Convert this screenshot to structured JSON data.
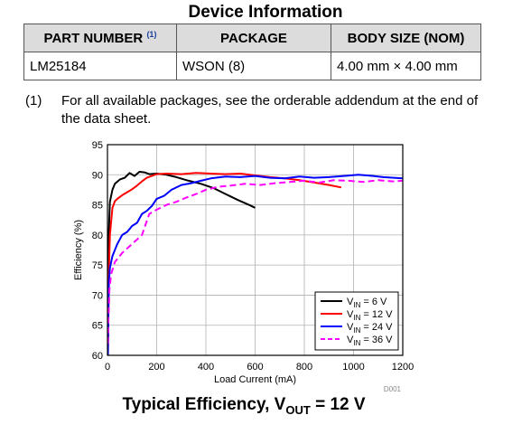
{
  "table": {
    "title": "Device Information",
    "headers": [
      "PART NUMBER",
      "PACKAGE",
      "BODY SIZE (NOM)"
    ],
    "header_note": "(1)",
    "rows": [
      [
        "LM25184",
        "WSON (8)",
        "4.00 mm × 4.00 mm"
      ]
    ]
  },
  "footnote": {
    "number": "(1)",
    "text": "For all available packages, see the orderable addendum at the end of the data sheet."
  },
  "chart_data": {
    "type": "line",
    "xlabel": "Load Current (mA)",
    "ylabel": "Efficiency (%)",
    "xlim": [
      0,
      1200
    ],
    "ylim": [
      60,
      95
    ],
    "xticks": [
      0,
      200,
      400,
      600,
      800,
      1000,
      1200
    ],
    "yticks": [
      60,
      65,
      70,
      75,
      80,
      85,
      90,
      95
    ],
    "grid": true,
    "legend_position": "bottom-right",
    "id_label": "D001",
    "series": [
      {
        "label_main": "V",
        "label_sub": "IN",
        "label_tail": " = 6 V",
        "color": "#000000",
        "dash": "",
        "x": [
          2,
          5,
          10,
          20,
          30,
          50,
          70,
          90,
          110,
          130,
          150,
          170,
          200,
          240,
          280,
          330,
          380,
          430,
          480,
          530,
          580,
          600
        ],
        "y": [
          62,
          80,
          85.5,
          87.5,
          88.5,
          89.2,
          89.5,
          90.3,
          89.8,
          90.5,
          90.4,
          90.1,
          90.2,
          90.0,
          89.6,
          89.0,
          88.5,
          87.8,
          86.8,
          85.8,
          84.9,
          84.5
        ]
      },
      {
        "label_main": "V",
        "label_sub": "IN",
        "label_tail": " = 12 V",
        "color": "#ff0000",
        "dash": "",
        "x": [
          2,
          5,
          10,
          20,
          30,
          40,
          60,
          80,
          100,
          120,
          140,
          160,
          180,
          200,
          240,
          300,
          360,
          420,
          480,
          540,
          600,
          660,
          720,
          780,
          840,
          900,
          950
        ],
        "y": [
          60,
          73,
          80,
          84.5,
          85.6,
          86,
          86.6,
          87.1,
          87.6,
          88.2,
          88.9,
          89.5,
          89.8,
          90.1,
          90.2,
          90.1,
          90.3,
          90.2,
          90.1,
          90.2,
          89.9,
          89.6,
          89.4,
          89.1,
          88.7,
          88.3,
          87.9
        ]
      },
      {
        "label_main": "V",
        "label_sub": "IN",
        "label_tail": " = 24 V",
        "color": "#0000ff",
        "dash": "",
        "x": [
          2,
          4,
          6,
          10,
          20,
          40,
          60,
          80,
          100,
          120,
          140,
          160,
          180,
          200,
          230,
          260,
          300,
          340,
          380,
          420,
          480,
          540,
          600,
          660,
          720,
          780,
          840,
          900,
          960,
          1020,
          1080,
          1120,
          1200
        ],
        "y": [
          60,
          67.5,
          72,
          74.5,
          76.5,
          78.5,
          80,
          80.5,
          81.5,
          82,
          83.5,
          84,
          84.8,
          86,
          86.5,
          87.5,
          88.3,
          88.6,
          89,
          89.4,
          89.7,
          89.6,
          89.8,
          89.5,
          89.4,
          89.7,
          89.5,
          89.6,
          89.8,
          90,
          89.8,
          89.6,
          89.4
        ]
      },
      {
        "label_main": "V",
        "label_sub": "IN",
        "label_tail": " = 36 V",
        "color": "#ff00ff",
        "dash": "7,4",
        "x": [
          2,
          4,
          8,
          15,
          30,
          60,
          100,
          140,
          170,
          200,
          240,
          280,
          320,
          360,
          400,
          450,
          500,
          560,
          620,
          680,
          740,
          800,
          860,
          920,
          980,
          1040,
          1100,
          1160,
          1200
        ],
        "y": [
          62,
          66,
          71,
          73.5,
          75.5,
          77,
          78.5,
          80,
          83.5,
          84.2,
          85,
          85.5,
          86.2,
          86.8,
          87.5,
          88,
          88.2,
          88.5,
          88.3,
          88.6,
          88.8,
          89,
          88.7,
          89.1,
          89,
          88.8,
          89.1,
          88.9,
          89
        ]
      }
    ]
  },
  "caption": {
    "main": "Typical Efficiency, V",
    "sub": "OUT",
    "tail": " = 12 V"
  }
}
